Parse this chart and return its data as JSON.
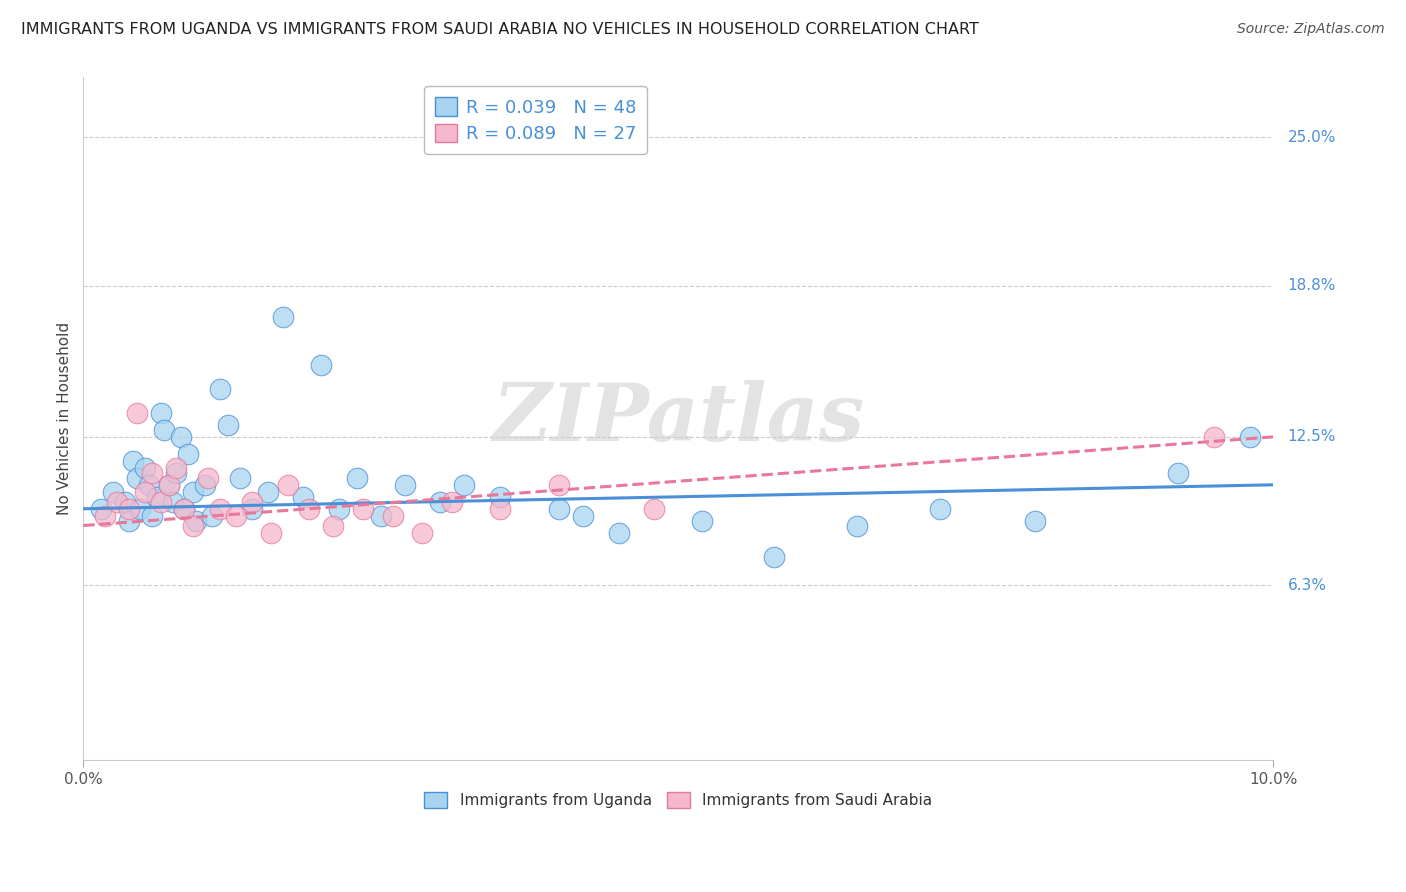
{
  "title": "IMMIGRANTS FROM UGANDA VS IMMIGRANTS FROM SAUDI ARABIA NO VEHICLES IN HOUSEHOLD CORRELATION CHART",
  "source": "Source: ZipAtlas.com",
  "ylabel": "No Vehicles in Household",
  "ytick_labels": [
    "6.3%",
    "12.5%",
    "18.8%",
    "25.0%"
  ],
  "ytick_values": [
    6.3,
    12.5,
    18.8,
    25.0
  ],
  "xlim": [
    0.0,
    10.0
  ],
  "ylim": [
    -1.0,
    27.5
  ],
  "legend1_label": "R = 0.039   N = 48",
  "legend2_label": "R = 0.089   N = 27",
  "color_blue": "#A8D4F0",
  "color_pink": "#F5B8CC",
  "line_blue": "#4A90D9",
  "line_pink": "#E8789A",
  "watermark": "ZIPatlas",
  "uganda_x": [
    0.15,
    0.25,
    0.35,
    0.38,
    0.42,
    0.45,
    0.48,
    0.52,
    0.55,
    0.58,
    0.62,
    0.65,
    0.68,
    0.72,
    0.75,
    0.78,
    0.82,
    0.85,
    0.88,
    0.92,
    0.95,
    1.02,
    1.08,
    1.15,
    1.22,
    1.32,
    1.42,
    1.55,
    1.68,
    1.85,
    2.0,
    2.15,
    2.3,
    2.5,
    2.7,
    3.0,
    3.2,
    3.5,
    4.0,
    4.2,
    4.5,
    5.2,
    5.8,
    6.5,
    7.2,
    8.0,
    9.2,
    9.8
  ],
  "uganda_y": [
    9.5,
    10.2,
    9.8,
    9.0,
    11.5,
    10.8,
    9.5,
    11.2,
    10.5,
    9.2,
    10.0,
    13.5,
    12.8,
    10.5,
    9.8,
    11.0,
    12.5,
    9.5,
    11.8,
    10.2,
    9.0,
    10.5,
    9.2,
    14.5,
    13.0,
    10.8,
    9.5,
    10.2,
    17.5,
    10.0,
    15.5,
    9.5,
    10.8,
    9.2,
    10.5,
    9.8,
    10.5,
    10.0,
    9.5,
    9.2,
    8.5,
    9.0,
    7.5,
    8.8,
    9.5,
    9.0,
    11.0,
    12.5
  ],
  "saudi_x": [
    0.18,
    0.28,
    0.38,
    0.45,
    0.52,
    0.58,
    0.65,
    0.72,
    0.78,
    0.85,
    0.92,
    1.05,
    1.15,
    1.28,
    1.42,
    1.58,
    1.72,
    1.9,
    2.1,
    2.35,
    2.6,
    2.85,
    3.1,
    3.5,
    4.0,
    4.8,
    9.5
  ],
  "saudi_y": [
    9.2,
    9.8,
    9.5,
    13.5,
    10.2,
    11.0,
    9.8,
    10.5,
    11.2,
    9.5,
    8.8,
    10.8,
    9.5,
    9.2,
    9.8,
    8.5,
    10.5,
    9.5,
    8.8,
    9.5,
    9.2,
    8.5,
    9.8,
    9.5,
    10.5,
    9.5,
    12.5
  ],
  "uganda_line_x0": 0.0,
  "uganda_line_y0": 9.5,
  "uganda_line_x1": 10.0,
  "uganda_line_y1": 10.5,
  "saudi_line_x0": 0.0,
  "saudi_line_y0": 8.8,
  "saudi_line_x1": 10.0,
  "saudi_line_y1": 12.5
}
